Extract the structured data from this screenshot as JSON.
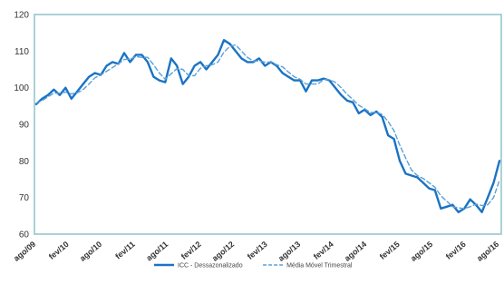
{
  "chart_data": {
    "type": "line",
    "title": "",
    "xlabel": "",
    "ylabel": "",
    "ylim": [
      60,
      120
    ],
    "yticks": [
      60,
      70,
      80,
      90,
      100,
      110,
      120
    ],
    "grid": false,
    "legend_position": "bottom-center",
    "x_tick_labels": [
      "ago/09",
      "fev/10",
      "ago/10",
      "fev/11",
      "ago/11",
      "fev/12",
      "ago/12",
      "fev/13",
      "ago/13",
      "fev/14",
      "ago/14",
      "fev/15",
      "ago/15",
      "fev/16",
      "ago/16"
    ],
    "series": [
      {
        "name": "ICC - Dessazonalizado",
        "color": "#1a73c4",
        "style": "solid",
        "values": [
          95.5,
          97,
          98,
          99.5,
          98,
          100,
          97,
          99,
          101,
          103,
          104,
          103.5,
          106,
          107,
          106.5,
          109.5,
          107,
          109,
          109,
          107,
          103,
          102,
          101.5,
          108,
          106,
          101,
          103,
          106,
          107,
          105,
          107,
          109,
          113,
          112,
          110,
          108,
          107,
          107,
          108,
          106,
          107,
          106,
          104,
          103,
          102,
          102,
          99,
          102,
          102,
          102.5,
          102,
          100,
          98,
          96.5,
          96,
          93,
          94,
          92.5,
          93.5,
          92,
          87,
          86,
          80,
          76.5,
          76,
          75.5,
          74,
          72.5,
          72,
          67,
          67.5,
          68,
          66,
          67,
          69.5,
          68,
          66,
          70,
          74,
          80
        ]
      },
      {
        "name": "Média Móvel Trimestral",
        "color": "#5aa0d8",
        "style": "dashed",
        "values": [
          95.8,
          96.5,
          97.5,
          98.5,
          98.5,
          98.8,
          98.3,
          98.6,
          99.5,
          101,
          102.7,
          103.5,
          104.5,
          105.5,
          106.5,
          107.7,
          107.8,
          108.5,
          108.3,
          108.3,
          106.3,
          104,
          102.3,
          103.8,
          105.2,
          105,
          103.3,
          103.3,
          105.3,
          106,
          106.3,
          107,
          109.7,
          111.3,
          111.7,
          110,
          108.3,
          107.3,
          107.3,
          107,
          107,
          106.3,
          105.7,
          104.3,
          103,
          102.3,
          101,
          101,
          101,
          102.2,
          102.2,
          101.5,
          100,
          98.2,
          96.8,
          95.2,
          94.3,
          93.2,
          93.3,
          92.7,
          90.8,
          88.3,
          84.3,
          80.8,
          77.5,
          76,
          75.2,
          74,
          72.8,
          70.5,
          69,
          67.5,
          67.2,
          67,
          67.5,
          68.2,
          67.8,
          68,
          70,
          74.7
        ]
      }
    ]
  }
}
